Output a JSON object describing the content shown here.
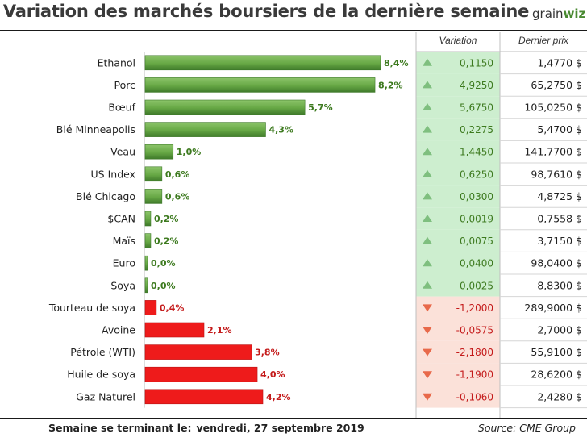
{
  "title": "Variation des marchés boursiers de la dernière semaine",
  "logo": {
    "prefix": "grain",
    "accent": "wiz"
  },
  "colors": {
    "positive_bar": "#67a845",
    "positive_bar_dark": "#3f7a2a",
    "positive_text": "#3d7a1f",
    "positive_bg": "#cdeecf",
    "negative_bar": "#ee1b1b",
    "negative_text": "#c41a1a",
    "negative_bg": "#fbe1d9",
    "up_arrow": "#7fbf7f",
    "down_arrow": "#e8694a"
  },
  "table": {
    "variation_header": "Variation",
    "price_header": "Dernier prix"
  },
  "chart_data": {
    "type": "bar",
    "orientation": "horizontal",
    "categories": [
      "Ethanol",
      "Porc",
      "Bœuf",
      "Blé Minneapolis",
      "Veau",
      "US Index",
      "Blé Chicago",
      "$CAN",
      "Maïs",
      "Euro",
      "Soya",
      "Tourteau de soya",
      "Avoine",
      "Pétrole (WTI)",
      "Huile de soya",
      "Gaz Naturel"
    ],
    "values": [
      8.4,
      8.2,
      5.7,
      4.3,
      1.0,
      0.6,
      0.6,
      0.2,
      0.2,
      0.0,
      0.0,
      0.4,
      2.1,
      3.8,
      4.0,
      4.2
    ],
    "value_labels": [
      "8,4%",
      "8,2%",
      "5,7%",
      "4,3%",
      "1,0%",
      "0,6%",
      "0,6%",
      "0,2%",
      "0,2%",
      "0,0%",
      "0,0%",
      "0,4%",
      "2,1%",
      "3,8%",
      "4,0%",
      "4,2%"
    ],
    "direction": [
      "up",
      "up",
      "up",
      "up",
      "up",
      "up",
      "up",
      "up",
      "up",
      "up",
      "up",
      "down",
      "down",
      "down",
      "down",
      "down"
    ],
    "variation": [
      "0,1150",
      "4,9250",
      "5,6750",
      "0,2275",
      "1,4450",
      "0,6250",
      "0,0300",
      "0,0019",
      "0,0075",
      "0,0400",
      "0,0025",
      "-1,2000",
      "-0,0575",
      "-2,1800",
      "-1,1900",
      "-0,1060"
    ],
    "last_price": [
      "1,4770 $",
      "65,2750 $",
      "105,0250 $",
      "5,4700 $",
      "141,7700 $",
      "98,7610 $",
      "4,8725 $",
      "0,7558 $",
      "3,7150 $",
      "98,0400 $",
      "8,8300 $",
      "289,9000 $",
      "2,7000 $",
      "55,9100 $",
      "28,6200 $",
      "2,4280 $"
    ],
    "xlim": [
      0,
      8.4
    ]
  },
  "footer": {
    "week_label": "Semaine se terminant le:",
    "week_date": "vendredi, 27 septembre 2019",
    "source": "Source: CME Group"
  }
}
